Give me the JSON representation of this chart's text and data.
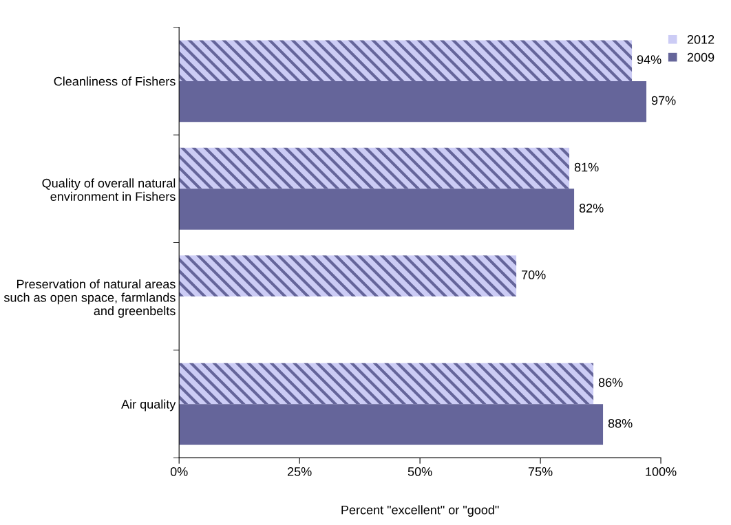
{
  "chart_data": {
    "type": "bar",
    "orientation": "horizontal",
    "xlabel": "Percent \"excellent\" or \"good\"",
    "categories": [
      "Cleanliness of Fishers",
      "Quality of overall natural environment in Fishers",
      "Preservation of natural areas such as open space, farmlands and greenbelts",
      "Air quality"
    ],
    "series": [
      {
        "name": "2012",
        "color": "#ccccf5",
        "values": [
          94,
          81,
          70,
          86
        ],
        "value_labels": [
          "94%",
          "81%",
          "70%",
          "86%"
        ]
      },
      {
        "name": "2009",
        "color": "#65659a",
        "values": [
          97,
          82,
          null,
          88
        ],
        "value_labels": [
          "97%",
          "82%",
          null,
          "88%"
        ]
      }
    ],
    "xlim": [
      0,
      100
    ],
    "xticks": [
      {
        "value": 0,
        "label": "0%"
      },
      {
        "value": 25,
        "label": "25%"
      },
      {
        "value": 50,
        "label": "50%"
      },
      {
        "value": 75,
        "label": "75%"
      },
      {
        "value": 100,
        "label": "100%"
      }
    ],
    "legend": "top right",
    "grid": false
  }
}
